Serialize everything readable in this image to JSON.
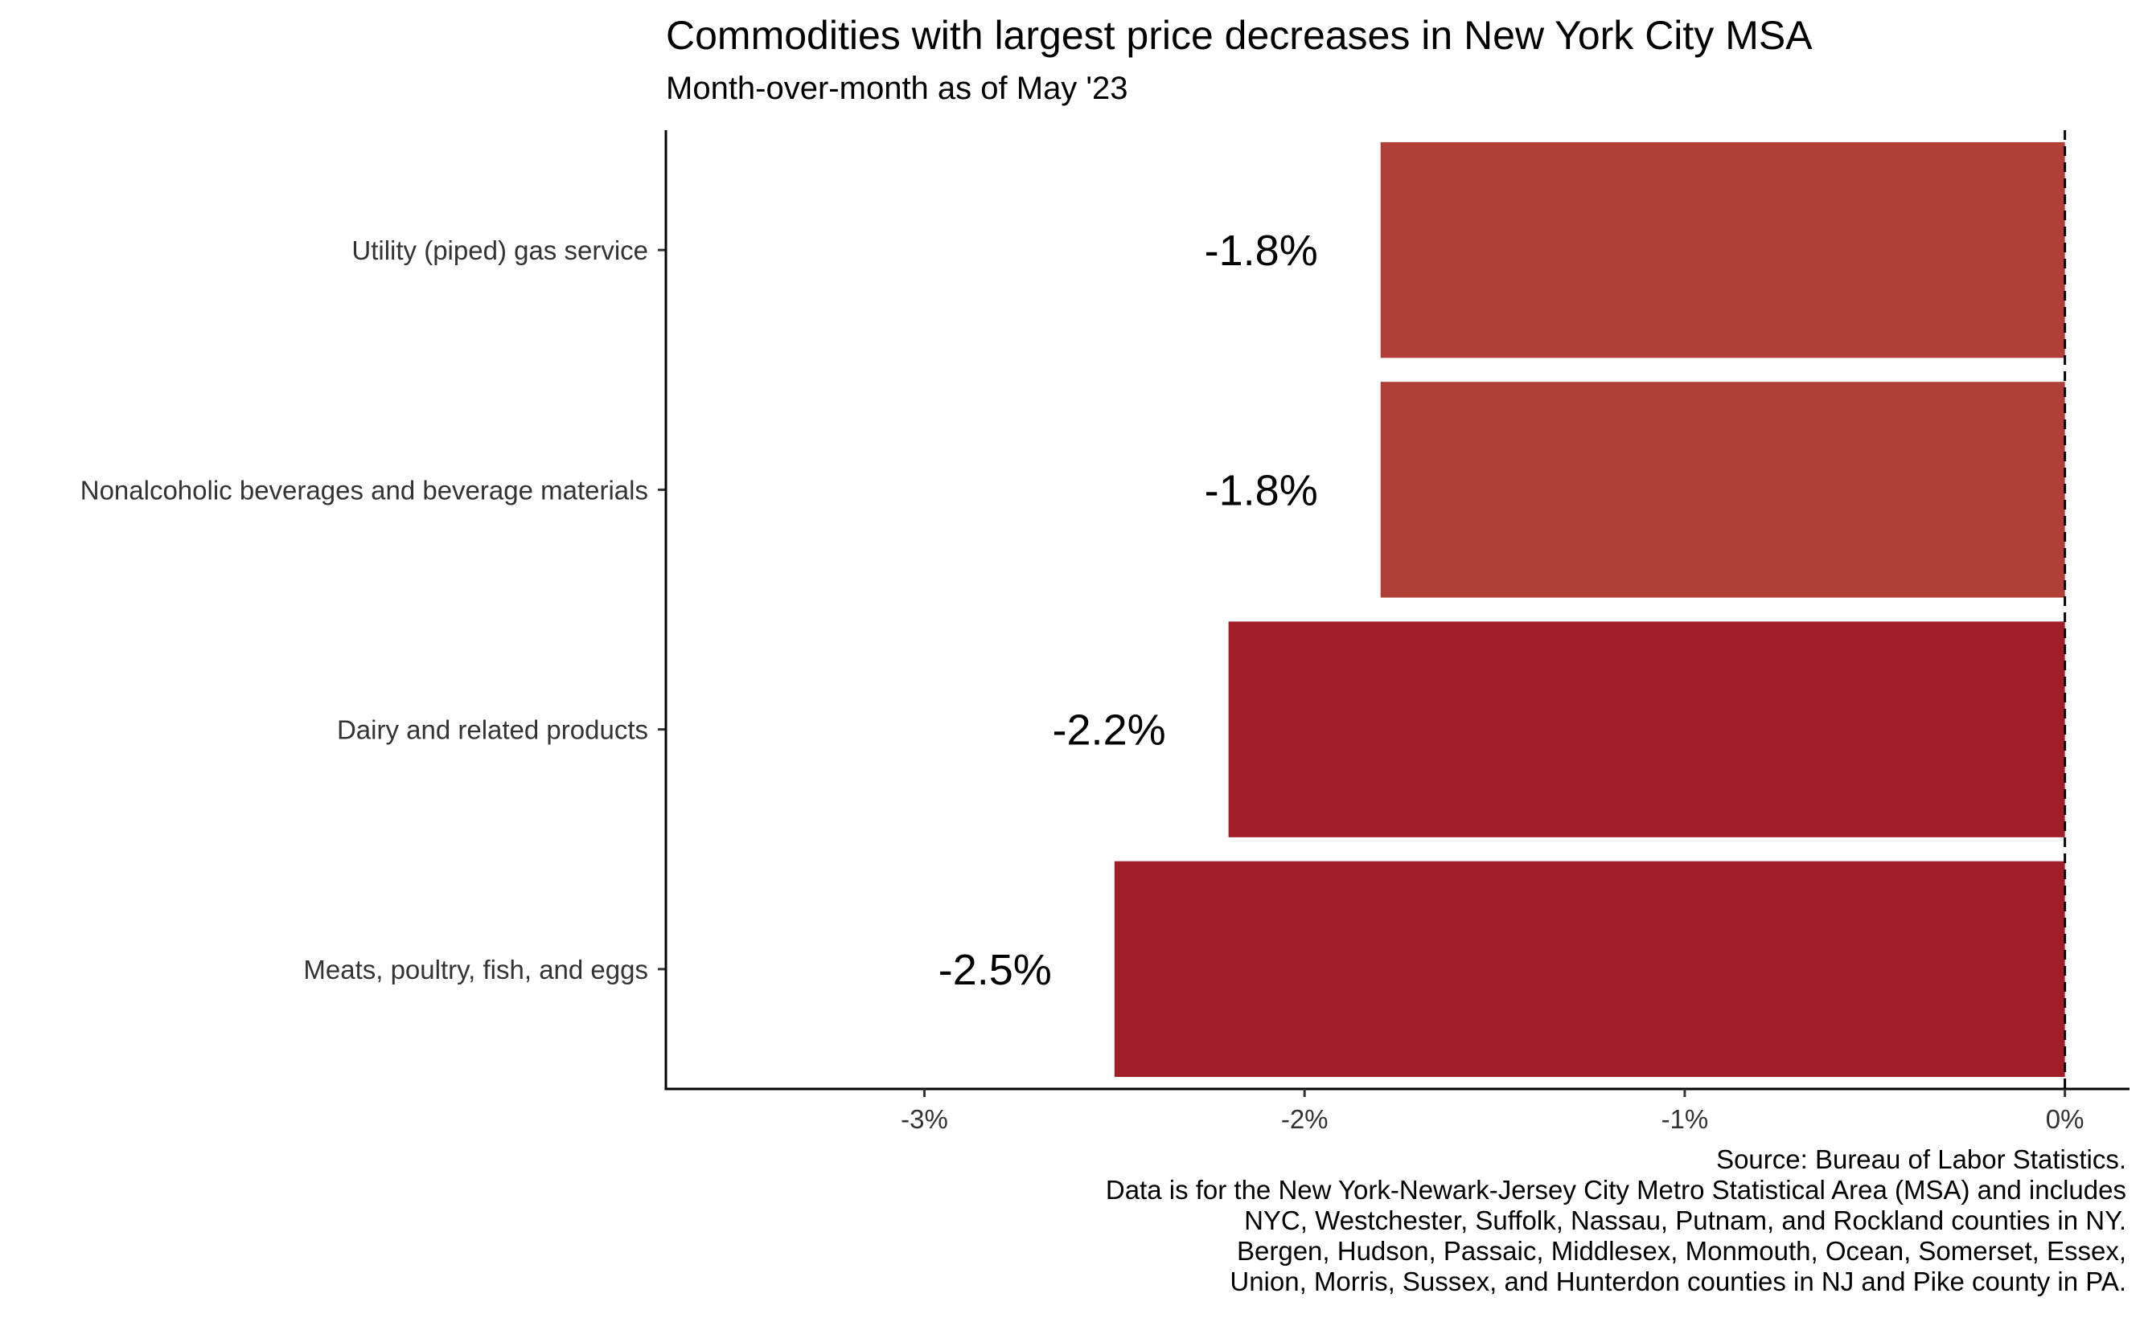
{
  "chart_data": {
    "type": "bar",
    "orientation": "horizontal",
    "title": "Commodities with largest price decreases in New York City MSA",
    "subtitle": "Month-over-month as of May '23",
    "categories": [
      "Utility (piped) gas service",
      "Nonalcoholic beverages and beverage materials",
      "Dairy and related products",
      "Meats, poultry, fish, and eggs"
    ],
    "values": [
      -1.8,
      -1.8,
      -2.2,
      -2.5
    ],
    "value_labels": [
      "-1.8%",
      "-1.8%",
      "-2.2%",
      "-2.5%"
    ],
    "colors": [
      "#b03f37",
      "#b03f37",
      "#a01e2a",
      "#a01e2a"
    ],
    "xlim": [
      -3.68,
      0.17
    ],
    "x_ticks": [
      -3,
      -2,
      -1,
      0
    ],
    "x_tick_labels": [
      "-3%",
      "-2%",
      "-1%",
      "0%"
    ],
    "reference_line": {
      "x": 0,
      "style": "dashed",
      "color": "#000000"
    },
    "grid": false,
    "legend": "none",
    "caption": [
      "Source: Bureau of Labor Statistics.",
      "Data is for the New York-Newark-Jersey City Metro Statistical Area (MSA) and includes",
      "NYC, Westchester, Suffolk, Nassau, Putnam, and Rockland counties in NY.",
      "Bergen, Hudson, Passaic, Middlesex, Monmouth, Ocean, Somerset, Essex,",
      "Union, Morris, Sussex, and Hunterdon counties in NJ and Pike county in PA."
    ]
  }
}
